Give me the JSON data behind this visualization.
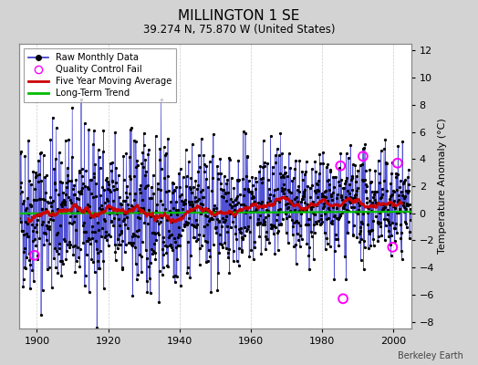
{
  "title": "MILLINGTON 1 SE",
  "subtitle": "39.274 N, 75.870 W (United States)",
  "ylabel": "Temperature Anomaly (°C)",
  "watermark": "Berkeley Earth",
  "ylim": [
    -8.5,
    12.5
  ],
  "yticks": [
    -8,
    -6,
    -4,
    -2,
    0,
    2,
    4,
    6,
    8,
    10,
    12
  ],
  "xlim": [
    1895,
    2005
  ],
  "xticks": [
    1900,
    1920,
    1940,
    1960,
    1980,
    2000
  ],
  "start_year": 1895,
  "end_year": 2004,
  "bg_color": "#d3d3d3",
  "plot_bg_color": "#ffffff",
  "raw_line_color": "#3333cc",
  "raw_dot_color": "#000000",
  "moving_avg_color": "#cc0000",
  "trend_color": "#00bb00",
  "qc_fail_color": "#ff00ff",
  "grid_color": "#cccccc",
  "seed": 42,
  "noise_std": 2.2,
  "qc_fail_points": [
    [
      1899.3,
      -3.1
    ],
    [
      1985.2,
      3.5
    ],
    [
      1985.9,
      -6.3
    ],
    [
      1991.5,
      4.2
    ],
    [
      1999.8,
      -2.5
    ],
    [
      2001.2,
      3.7
    ]
  ],
  "trend_slope": 0.004,
  "trend_intercept": 0.05,
  "moving_avg_window": 60
}
